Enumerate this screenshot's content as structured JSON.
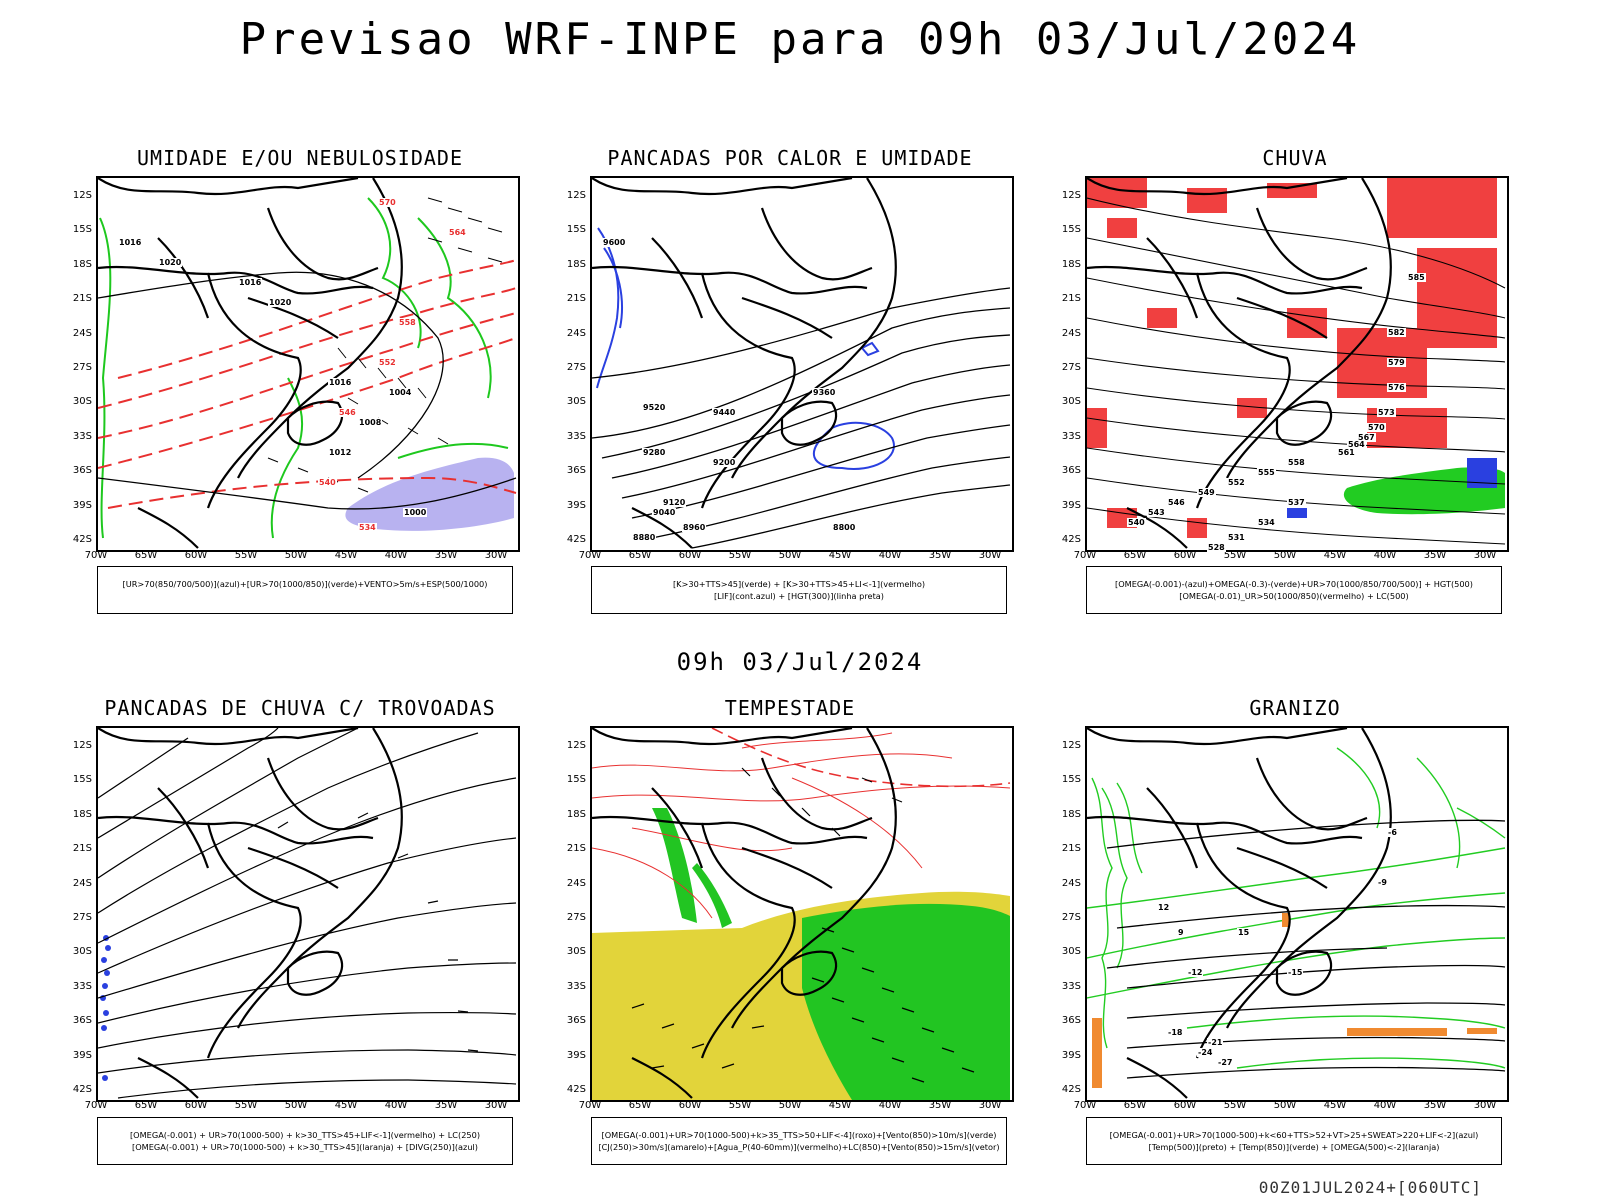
{
  "header": {
    "title": "Previsao WRF-INPE  para 09h 03/Jul/2024"
  },
  "mid_title": "09h 03/Jul/2024",
  "footer": "00Z01JUL2024+[060UTC]",
  "axes": {
    "lat_labels": [
      "12S",
      "15S",
      "18S",
      "21S",
      "24S",
      "27S",
      "30S",
      "33S",
      "36S",
      "39S",
      "42S"
    ],
    "lon_labels": [
      "70W",
      "65W",
      "60W",
      "55W",
      "50W",
      "45W",
      "40W",
      "35W",
      "30W"
    ]
  },
  "panels": [
    {
      "title": "UMIDADE E/OU NEBULOSIDADE",
      "legend": [
        "[UR>70(850/700/500)](azul)+[UR>70(1000/850)](verde)+VENTO>5m/s+ESP(500/1000)"
      ]
    },
    {
      "title": "PANCADAS POR CALOR E UMIDADE",
      "legend": [
        "[K>30+TTS>45](verde) + [K>30+TTS>45+LI<-1](vermelho)",
        "[LIF](cont.azul) + [HGT(300)](linha preta)"
      ]
    },
    {
      "title": "CHUVA",
      "legend": [
        "[OMEGA(-0.001)-(azul)+OMEGA(-0.3)-(verde)+UR>70(1000/850/700/500)] + HGT(500)",
        "[OMEGA(-0.01)_UR>50(1000/850)(vermelho) + LC(500)"
      ]
    },
    {
      "title": "PANCADAS DE CHUVA C/ TROVOADAS",
      "legend": [
        "[OMEGA(-0.001) + UR>70(1000-500) + k>30_TTS>45+LIF<-1](vermelho) + LC(250)",
        "[OMEGA(-0.001) + UR>70(1000-500) + k>30_TTS>45](laranja) + [DIVG(250)](azul)"
      ]
    },
    {
      "title": "TEMPESTADE",
      "legend": [
        "[OMEGA(-0.001)+UR>70(1000-500)+k>35_TTS>50+LIF<-4](roxo)+[Vento(850)>10m/s](verde)",
        "[CJ(250)>30m/s](amarelo)+[Agua_P(40-60mm)](vermelho)+LC(850)+[Vento(850)>15m/s](vetor)"
      ]
    },
    {
      "title": "GRANIZO",
      "legend": [
        "[OMEGA(-0.001)+UR>70(1000-500)+k<60+TTS>52+VT>25+SWEAT>220+LIF<-2](azul)",
        "[Temp(500)](preto) + [Temp(850)](verde) + [OMEGA(500)<-2](laranja)"
      ]
    }
  ],
  "map_labels": {
    "p1": [
      "1016",
      "1020",
      "1016",
      "1020",
      "1016",
      "1012",
      "1008",
      "1004",
      "1000",
      "570",
      "564",
      "558",
      "552",
      "546",
      "540",
      "534"
    ],
    "p2": [
      "9600",
      "9520",
      "9440",
      "9360",
      "9280",
      "9200",
      "9120",
      "9040",
      "8960",
      "8880",
      "8800"
    ],
    "p3": [
      "585",
      "582",
      "579",
      "576",
      "573",
      "570",
      "567",
      "564",
      "561",
      "558",
      "555",
      "552",
      "549",
      "546",
      "543",
      "540",
      "537",
      "534",
      "531",
      "528"
    ],
    "p6": [
      "-6",
      "-9",
      "-12",
      "-15",
      "-18",
      "-21",
      "-24",
      "-27",
      "9",
      "12",
      "15"
    ]
  }
}
